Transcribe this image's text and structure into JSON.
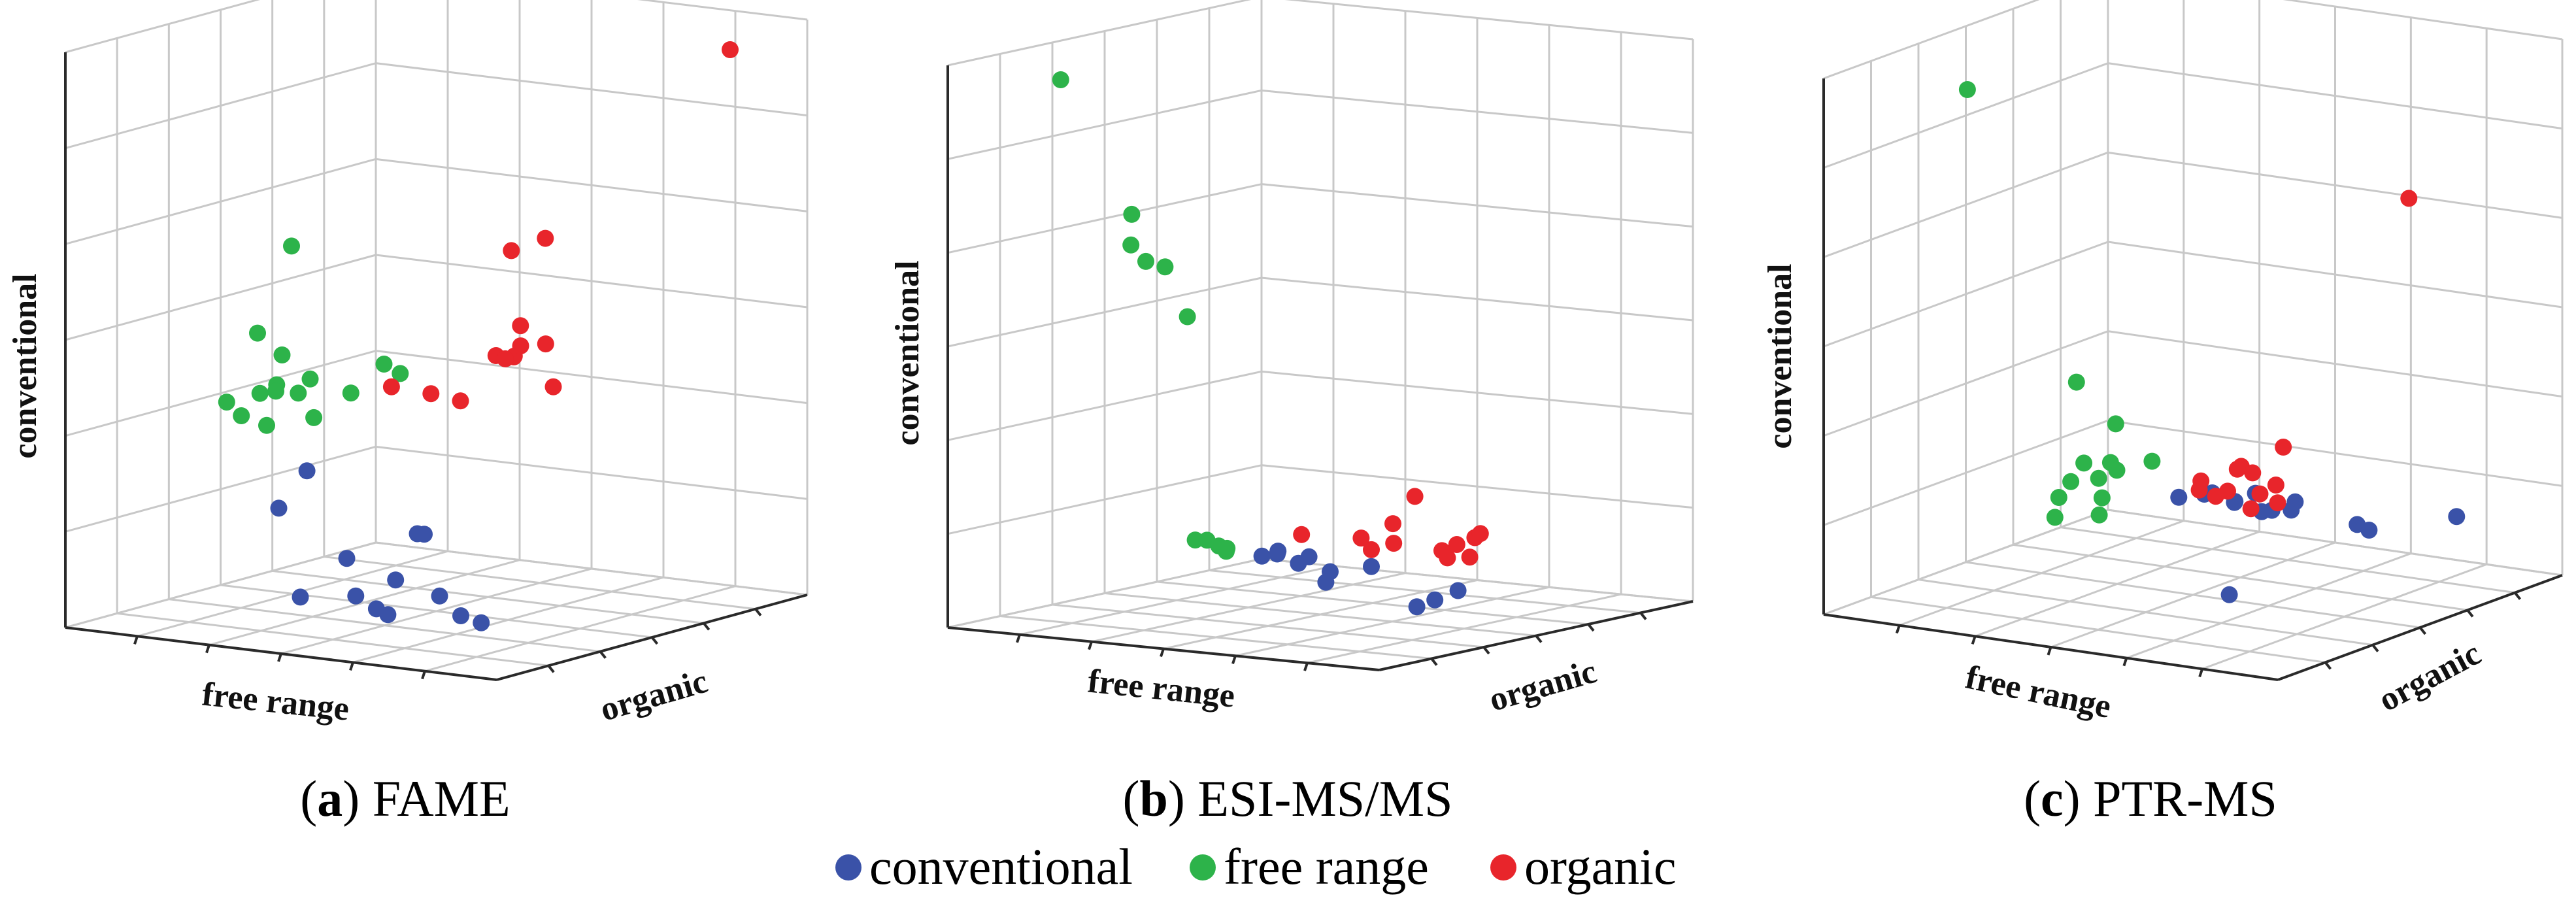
{
  "figure": {
    "legend": [
      {
        "key": "conventional",
        "label": "conventional",
        "color": "#3a52a8"
      },
      {
        "key": "free_range",
        "label": "free range",
        "color": "#2db34a"
      },
      {
        "key": "organic",
        "label": "organic",
        "color": "#e8252b"
      }
    ]
  },
  "chart_data": [
    {
      "type": "scatter",
      "projection": "3d",
      "panel_letter": "a",
      "panel_title": "FAME",
      "axis_labels": {
        "x": "free range",
        "y": "organic",
        "z": "conventional"
      },
      "xlim": [
        0,
        10
      ],
      "ylim": [
        0,
        10
      ],
      "zlim": [
        0,
        10
      ],
      "series": [
        {
          "name": "conventional",
          "points": [
            [
              2.5,
              3.4,
              1.8
            ],
            [
              3.8,
              2.5,
              2.7
            ],
            [
              3.5,
              4.2,
              0.9
            ],
            [
              4.2,
              5.5,
              1.2
            ],
            [
              4.0,
              6.0,
              1.1
            ],
            [
              4.2,
              4.8,
              0.5
            ],
            [
              3.9,
              4.6,
              0.0
            ],
            [
              4.5,
              5.8,
              0.1
            ],
            [
              6.0,
              4.4,
              0.1
            ],
            [
              6.4,
              4.5,
              0.0
            ],
            [
              4.5,
              3.1,
              0.5
            ],
            [
              5.1,
              3.3,
              0.2
            ],
            [
              3.0,
              3.4,
              0.3
            ]
          ]
        },
        {
          "name": "free_range",
          "points": [
            [
              1.0,
              4.8,
              4.5
            ],
            [
              2.0,
              4.2,
              4.3
            ],
            [
              1.3,
              5.0,
              3.6
            ],
            [
              2.0,
              4.0,
              3.7
            ],
            [
              1.8,
              5.0,
              3.5
            ],
            [
              1.2,
              4.6,
              3.5
            ],
            [
              0.5,
              4.5,
              3.3
            ],
            [
              1.5,
              5.8,
              3.6
            ],
            [
              2.3,
              6.0,
              3.4
            ],
            [
              1.5,
              4.4,
              3.0
            ],
            [
              1.8,
              5.5,
              3.0
            ],
            [
              1.2,
              4.0,
              3.2
            ],
            [
              1.5,
              5.2,
              6.0
            ],
            [
              3.5,
              5.4,
              4.1
            ],
            [
              3.3,
              6.2,
              3.8
            ]
          ]
        },
        {
          "name": "organic",
          "points": [
            [
              5.3,
              7.0,
              6.0
            ],
            [
              5.8,
              7.4,
              6.2
            ],
            [
              5.8,
              6.6,
              4.8
            ],
            [
              6.6,
              6.3,
              4.6
            ],
            [
              5.8,
              6.4,
              4.3
            ],
            [
              5.5,
              6.8,
              4.2
            ],
            [
              5.3,
              7.3,
              4.3
            ],
            [
              4.8,
              7.2,
              4.1
            ],
            [
              4.8,
              7.5,
              4.0
            ],
            [
              5.2,
              5.5,
              3.6
            ],
            [
              6.2,
              7.1,
              3.7
            ],
            [
              4.3,
              5.8,
              3.6
            ],
            [
              3.6,
              5.5,
              3.7
            ],
            [
              8.5,
              9.6,
              9.4
            ]
          ]
        }
      ]
    },
    {
      "type": "scatter",
      "projection": "3d",
      "panel_letter": "b",
      "panel_title": "ESI-MS/MS",
      "axis_labels": {
        "x": "free range",
        "y": "organic",
        "z": "conventional"
      },
      "xlim": [
        0,
        10
      ],
      "ylim": [
        0,
        10
      ],
      "zlim": [
        0,
        10
      ],
      "series": [
        {
          "name": "conventional",
          "points": [
            [
              3.5,
              5.2,
              0.9
            ],
            [
              3.8,
              5.3,
              1.0
            ],
            [
              4.0,
              5.0,
              1.0
            ],
            [
              4.2,
              5.4,
              0.8
            ],
            [
              4.3,
              5.6,
              0.9
            ],
            [
              4.5,
              6.0,
              0.6
            ],
            [
              5.2,
              4.9,
              0.6
            ],
            [
              5.6,
              5.8,
              0.8
            ],
            [
              6.8,
              5.6,
              0.2
            ],
            [
              7.0,
              5.9,
              0.3
            ],
            [
              7.1,
              6.5,
              0.4
            ]
          ]
        },
        {
          "name": "free_range",
          "points": [
            [
              0.8,
              2.5,
              9.5
            ],
            [
              1.5,
              3.8,
              7.0
            ],
            [
              2.5,
              2.4,
              6.7
            ],
            [
              2.7,
              2.6,
              6.4
            ],
            [
              3.0,
              2.8,
              6.3
            ],
            [
              3.3,
              3.1,
              5.4
            ],
            [
              2.9,
              3.9,
              1.3
            ],
            [
              3.1,
              4.0,
              1.3
            ],
            [
              3.3,
              4.1,
              1.2
            ],
            [
              3.4,
              4.2,
              1.1
            ],
            [
              3.2,
              4.5,
              1.1
            ]
          ]
        },
        {
          "name": "organic",
          "points": [
            [
              4.2,
              5.5,
              1.3
            ],
            [
              5.0,
              6.3,
              1.2
            ],
            [
              5.6,
              5.8,
              1.1
            ],
            [
              5.9,
              6.1,
              1.2
            ],
            [
              6.1,
              5.8,
              1.6
            ],
            [
              6.1,
              6.5,
              2.0
            ],
            [
              6.8,
              6.4,
              1.1
            ],
            [
              7.0,
              6.6,
              1.2
            ],
            [
              7.2,
              6.9,
              1.3
            ],
            [
              7.4,
              6.8,
              1.4
            ],
            [
              7.3,
              6.6,
              1.0
            ],
            [
              7.0,
              6.3,
              1.0
            ]
          ]
        }
      ]
    },
    {
      "type": "scatter",
      "projection": "3d",
      "panel_letter": "c",
      "panel_title": "PTR-MS",
      "axis_labels": {
        "x": "free range",
        "y": "organic",
        "z": "conventional"
      },
      "xlim": [
        0,
        10
      ],
      "ylim": [
        0,
        10
      ],
      "zlim": [
        0,
        10
      ],
      "series": [
        {
          "name": "conventional",
          "points": [
            [
              4.5,
              5.3,
              1.7
            ],
            [
              5.0,
              5.4,
              1.8
            ],
            [
              5.3,
              5.2,
              1.9
            ],
            [
              5.6,
              5.5,
              1.7
            ],
            [
              5.8,
              5.2,
              1.8
            ],
            [
              6.0,
              5.6,
              1.9
            ],
            [
              6.2,
              5.5,
              1.6
            ],
            [
              6.3,
              5.7,
              1.6
            ],
            [
              6.6,
              5.9,
              1.6
            ],
            [
              7.0,
              5.4,
              1.9
            ],
            [
              7.8,
              6.3,
              1.4
            ],
            [
              8.0,
              6.4,
              1.3
            ],
            [
              8.8,
              8.2,
              1.3
            ],
            [
              5.8,
              5.0,
              0.1
            ]
          ]
        },
        {
          "name": "free_range",
          "points": [
            [
              1.6,
              2.5,
              9.5
            ],
            [
              3.0,
              4.1,
              3.9
            ],
            [
              3.8,
              4.2,
              3.2
            ],
            [
              3.6,
              3.4,
              2.6
            ],
            [
              4.0,
              3.7,
              2.6
            ],
            [
              3.8,
              3.6,
              2.3
            ],
            [
              3.5,
              3.1,
              2.3
            ],
            [
              4.0,
              3.4,
              2.0
            ],
            [
              3.3,
              3.0,
              2.0
            ],
            [
              4.6,
              4.2,
              2.6
            ],
            [
              4.2,
              3.6,
              2.5
            ],
            [
              3.4,
              2.7,
              1.7
            ],
            [
              4.0,
              3.3,
              1.7
            ]
          ]
        },
        {
          "name": "organic",
          "points": [
            [
              6.0,
              5.1,
              2.5
            ],
            [
              6.3,
              6.1,
              2.7
            ],
            [
              5.6,
              5.6,
              2.3
            ],
            [
              6.0,
              5.5,
              2.3
            ],
            [
              5.3,
              4.8,
              2.2
            ],
            [
              6.2,
              6.0,
              2.0
            ],
            [
              5.7,
              5.1,
              2.0
            ],
            [
              5.5,
              5.0,
              1.9
            ],
            [
              6.1,
              5.6,
              1.9
            ],
            [
              5.2,
              4.9,
              2.0
            ],
            [
              5.9,
              5.6,
              1.6
            ],
            [
              6.3,
              5.9,
              1.7
            ],
            [
              7.5,
              8.6,
              7.0
            ]
          ]
        }
      ]
    }
  ]
}
